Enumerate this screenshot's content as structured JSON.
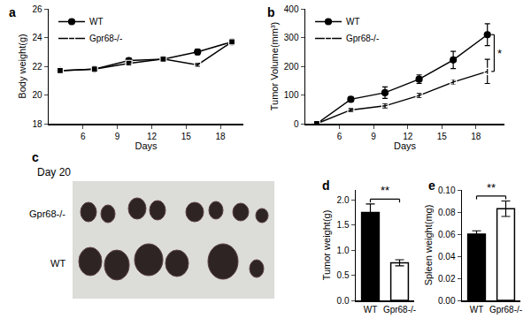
{
  "chart_data": [
    {
      "panel": "a",
      "type": "line",
      "x_label": "Days",
      "y_label": "Body weight(g)",
      "x": [
        4,
        7,
        10,
        13,
        16,
        19
      ],
      "series": [
        {
          "name": "WT",
          "color": "#000000",
          "marker": "circle",
          "values": [
            21.7,
            21.8,
            22.4,
            22.5,
            23.0,
            23.7
          ],
          "errors": [
            0.1,
            0.1,
            0.15,
            0.1,
            0.2,
            0.1
          ]
        },
        {
          "name": "Gpr68-/-",
          "color": "#000000",
          "marker": "square-open",
          "values": [
            21.7,
            21.8,
            22.2,
            22.5,
            22.1,
            23.7
          ],
          "errors": [
            0.1,
            0.1,
            0.1,
            0.1,
            0.1,
            0.15
          ]
        }
      ],
      "xlim": [
        3,
        20
      ],
      "xticks": [
        6,
        9,
        12,
        15,
        18
      ],
      "ylim": [
        18,
        26
      ],
      "yticks": [
        18,
        20,
        22,
        24,
        26
      ],
      "legend": "upper left"
    },
    {
      "panel": "b",
      "type": "line",
      "x_label": "Days",
      "y_label": "Tumor Volume(mm³)",
      "x": [
        4,
        7,
        10,
        13,
        16,
        19
      ],
      "series": [
        {
          "name": "WT",
          "color": "#000000",
          "marker": "circle",
          "values": [
            0,
            85,
            108,
            155,
            222,
            310
          ],
          "errors": [
            0,
            8,
            20,
            15,
            30,
            38
          ]
        },
        {
          "name": "Gpr68-/-",
          "color": "#000000",
          "marker": "square-open",
          "values": [
            0,
            48,
            62,
            98,
            145,
            182
          ],
          "errors": [
            0,
            5,
            8,
            8,
            10,
            42
          ]
        }
      ],
      "xlim": [
        3,
        20.5
      ],
      "xticks": [
        6,
        9,
        12,
        15,
        18
      ],
      "ylim": [
        0,
        400
      ],
      "yticks": [
        0,
        100,
        200,
        300,
        400
      ],
      "legend": "upper left",
      "annotation": "*"
    },
    {
      "panel": "d",
      "type": "bar",
      "y_label": "Tumor weight(g)",
      "categories": [
        "WT",
        "Gpr68-/-"
      ],
      "values": [
        1.75,
        0.75
      ],
      "errors": [
        0.17,
        0.06
      ],
      "colors": [
        "#000000",
        "#ffffff"
      ],
      "ylim": [
        0,
        2.2
      ],
      "yticks": [
        {
          "value": 0,
          "label": "0.0"
        },
        {
          "value": 0.5,
          "label": "0.5"
        },
        {
          "value": 1,
          "label": "1.0"
        },
        {
          "value": 1.5,
          "label": "1.5"
        },
        {
          "value": 2,
          "label": "2.0"
        }
      ],
      "annotation": "**"
    },
    {
      "panel": "e",
      "type": "bar",
      "y_label": "Spleen weight(mg)",
      "categories": [
        "WT",
        "Gpr68-/-"
      ],
      "values": [
        0.06,
        0.083
      ],
      "errors": [
        0.003,
        0.007
      ],
      "colors": [
        "#000000",
        "#ffffff"
      ],
      "ylim": [
        0,
        0.1
      ],
      "yticks": [
        {
          "value": 0,
          "label": "0.00"
        },
        {
          "value": 0.02,
          "label": "0.02"
        },
        {
          "value": 0.04,
          "label": "0.04"
        },
        {
          "value": 0.06,
          "label": "0.06"
        },
        {
          "value": 0.08,
          "label": "0.08"
        },
        {
          "value": 0.1,
          "label": "0.10"
        }
      ],
      "annotation": "**"
    }
  ],
  "photo": {
    "panel": "c",
    "title": "Day 20",
    "row_labels": [
      "Gpr68-/-",
      "WT"
    ]
  }
}
